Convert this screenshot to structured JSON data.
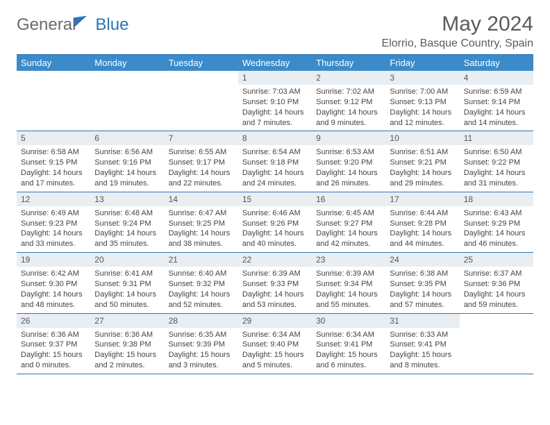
{
  "brand": {
    "part1": "General",
    "part2": "Blue"
  },
  "title": "May 2024",
  "location": "Elorrio, Basque Country, Spain",
  "colors": {
    "header_bg": "#3b8bca",
    "header_border": "#2f74b5",
    "daynum_bg": "#e9eef2",
    "text": "#444444",
    "title_text": "#5a5a5a"
  },
  "typography": {
    "title_fontsize": 30,
    "location_fontsize": 16,
    "dow_fontsize": 13,
    "daynum_fontsize": 12,
    "body_fontsize": 11
  },
  "calendar": {
    "type": "calendar-table",
    "days_of_week": [
      "Sunday",
      "Monday",
      "Tuesday",
      "Wednesday",
      "Thursday",
      "Friday",
      "Saturday"
    ],
    "weeks": [
      [
        {
          "n": "",
          "sunrise": "",
          "sunset": "",
          "daylight": ""
        },
        {
          "n": "",
          "sunrise": "",
          "sunset": "",
          "daylight": ""
        },
        {
          "n": "",
          "sunrise": "",
          "sunset": "",
          "daylight": ""
        },
        {
          "n": "1",
          "sunrise": "Sunrise: 7:03 AM",
          "sunset": "Sunset: 9:10 PM",
          "daylight": "Daylight: 14 hours and 7 minutes."
        },
        {
          "n": "2",
          "sunrise": "Sunrise: 7:02 AM",
          "sunset": "Sunset: 9:12 PM",
          "daylight": "Daylight: 14 hours and 9 minutes."
        },
        {
          "n": "3",
          "sunrise": "Sunrise: 7:00 AM",
          "sunset": "Sunset: 9:13 PM",
          "daylight": "Daylight: 14 hours and 12 minutes."
        },
        {
          "n": "4",
          "sunrise": "Sunrise: 6:59 AM",
          "sunset": "Sunset: 9:14 PM",
          "daylight": "Daylight: 14 hours and 14 minutes."
        }
      ],
      [
        {
          "n": "5",
          "sunrise": "Sunrise: 6:58 AM",
          "sunset": "Sunset: 9:15 PM",
          "daylight": "Daylight: 14 hours and 17 minutes."
        },
        {
          "n": "6",
          "sunrise": "Sunrise: 6:56 AM",
          "sunset": "Sunset: 9:16 PM",
          "daylight": "Daylight: 14 hours and 19 minutes."
        },
        {
          "n": "7",
          "sunrise": "Sunrise: 6:55 AM",
          "sunset": "Sunset: 9:17 PM",
          "daylight": "Daylight: 14 hours and 22 minutes."
        },
        {
          "n": "8",
          "sunrise": "Sunrise: 6:54 AM",
          "sunset": "Sunset: 9:18 PM",
          "daylight": "Daylight: 14 hours and 24 minutes."
        },
        {
          "n": "9",
          "sunrise": "Sunrise: 6:53 AM",
          "sunset": "Sunset: 9:20 PM",
          "daylight": "Daylight: 14 hours and 26 minutes."
        },
        {
          "n": "10",
          "sunrise": "Sunrise: 6:51 AM",
          "sunset": "Sunset: 9:21 PM",
          "daylight": "Daylight: 14 hours and 29 minutes."
        },
        {
          "n": "11",
          "sunrise": "Sunrise: 6:50 AM",
          "sunset": "Sunset: 9:22 PM",
          "daylight": "Daylight: 14 hours and 31 minutes."
        }
      ],
      [
        {
          "n": "12",
          "sunrise": "Sunrise: 6:49 AM",
          "sunset": "Sunset: 9:23 PM",
          "daylight": "Daylight: 14 hours and 33 minutes."
        },
        {
          "n": "13",
          "sunrise": "Sunrise: 6:48 AM",
          "sunset": "Sunset: 9:24 PM",
          "daylight": "Daylight: 14 hours and 35 minutes."
        },
        {
          "n": "14",
          "sunrise": "Sunrise: 6:47 AM",
          "sunset": "Sunset: 9:25 PM",
          "daylight": "Daylight: 14 hours and 38 minutes."
        },
        {
          "n": "15",
          "sunrise": "Sunrise: 6:46 AM",
          "sunset": "Sunset: 9:26 PM",
          "daylight": "Daylight: 14 hours and 40 minutes."
        },
        {
          "n": "16",
          "sunrise": "Sunrise: 6:45 AM",
          "sunset": "Sunset: 9:27 PM",
          "daylight": "Daylight: 14 hours and 42 minutes."
        },
        {
          "n": "17",
          "sunrise": "Sunrise: 6:44 AM",
          "sunset": "Sunset: 9:28 PM",
          "daylight": "Daylight: 14 hours and 44 minutes."
        },
        {
          "n": "18",
          "sunrise": "Sunrise: 6:43 AM",
          "sunset": "Sunset: 9:29 PM",
          "daylight": "Daylight: 14 hours and 46 minutes."
        }
      ],
      [
        {
          "n": "19",
          "sunrise": "Sunrise: 6:42 AM",
          "sunset": "Sunset: 9:30 PM",
          "daylight": "Daylight: 14 hours and 48 minutes."
        },
        {
          "n": "20",
          "sunrise": "Sunrise: 6:41 AM",
          "sunset": "Sunset: 9:31 PM",
          "daylight": "Daylight: 14 hours and 50 minutes."
        },
        {
          "n": "21",
          "sunrise": "Sunrise: 6:40 AM",
          "sunset": "Sunset: 9:32 PM",
          "daylight": "Daylight: 14 hours and 52 minutes."
        },
        {
          "n": "22",
          "sunrise": "Sunrise: 6:39 AM",
          "sunset": "Sunset: 9:33 PM",
          "daylight": "Daylight: 14 hours and 53 minutes."
        },
        {
          "n": "23",
          "sunrise": "Sunrise: 6:39 AM",
          "sunset": "Sunset: 9:34 PM",
          "daylight": "Daylight: 14 hours and 55 minutes."
        },
        {
          "n": "24",
          "sunrise": "Sunrise: 6:38 AM",
          "sunset": "Sunset: 9:35 PM",
          "daylight": "Daylight: 14 hours and 57 minutes."
        },
        {
          "n": "25",
          "sunrise": "Sunrise: 6:37 AM",
          "sunset": "Sunset: 9:36 PM",
          "daylight": "Daylight: 14 hours and 59 minutes."
        }
      ],
      [
        {
          "n": "26",
          "sunrise": "Sunrise: 6:36 AM",
          "sunset": "Sunset: 9:37 PM",
          "daylight": "Daylight: 15 hours and 0 minutes."
        },
        {
          "n": "27",
          "sunrise": "Sunrise: 6:36 AM",
          "sunset": "Sunset: 9:38 PM",
          "daylight": "Daylight: 15 hours and 2 minutes."
        },
        {
          "n": "28",
          "sunrise": "Sunrise: 6:35 AM",
          "sunset": "Sunset: 9:39 PM",
          "daylight": "Daylight: 15 hours and 3 minutes."
        },
        {
          "n": "29",
          "sunrise": "Sunrise: 6:34 AM",
          "sunset": "Sunset: 9:40 PM",
          "daylight": "Daylight: 15 hours and 5 minutes."
        },
        {
          "n": "30",
          "sunrise": "Sunrise: 6:34 AM",
          "sunset": "Sunset: 9:41 PM",
          "daylight": "Daylight: 15 hours and 6 minutes."
        },
        {
          "n": "31",
          "sunrise": "Sunrise: 6:33 AM",
          "sunset": "Sunset: 9:41 PM",
          "daylight": "Daylight: 15 hours and 8 minutes."
        },
        {
          "n": "",
          "sunrise": "",
          "sunset": "",
          "daylight": ""
        }
      ]
    ]
  }
}
